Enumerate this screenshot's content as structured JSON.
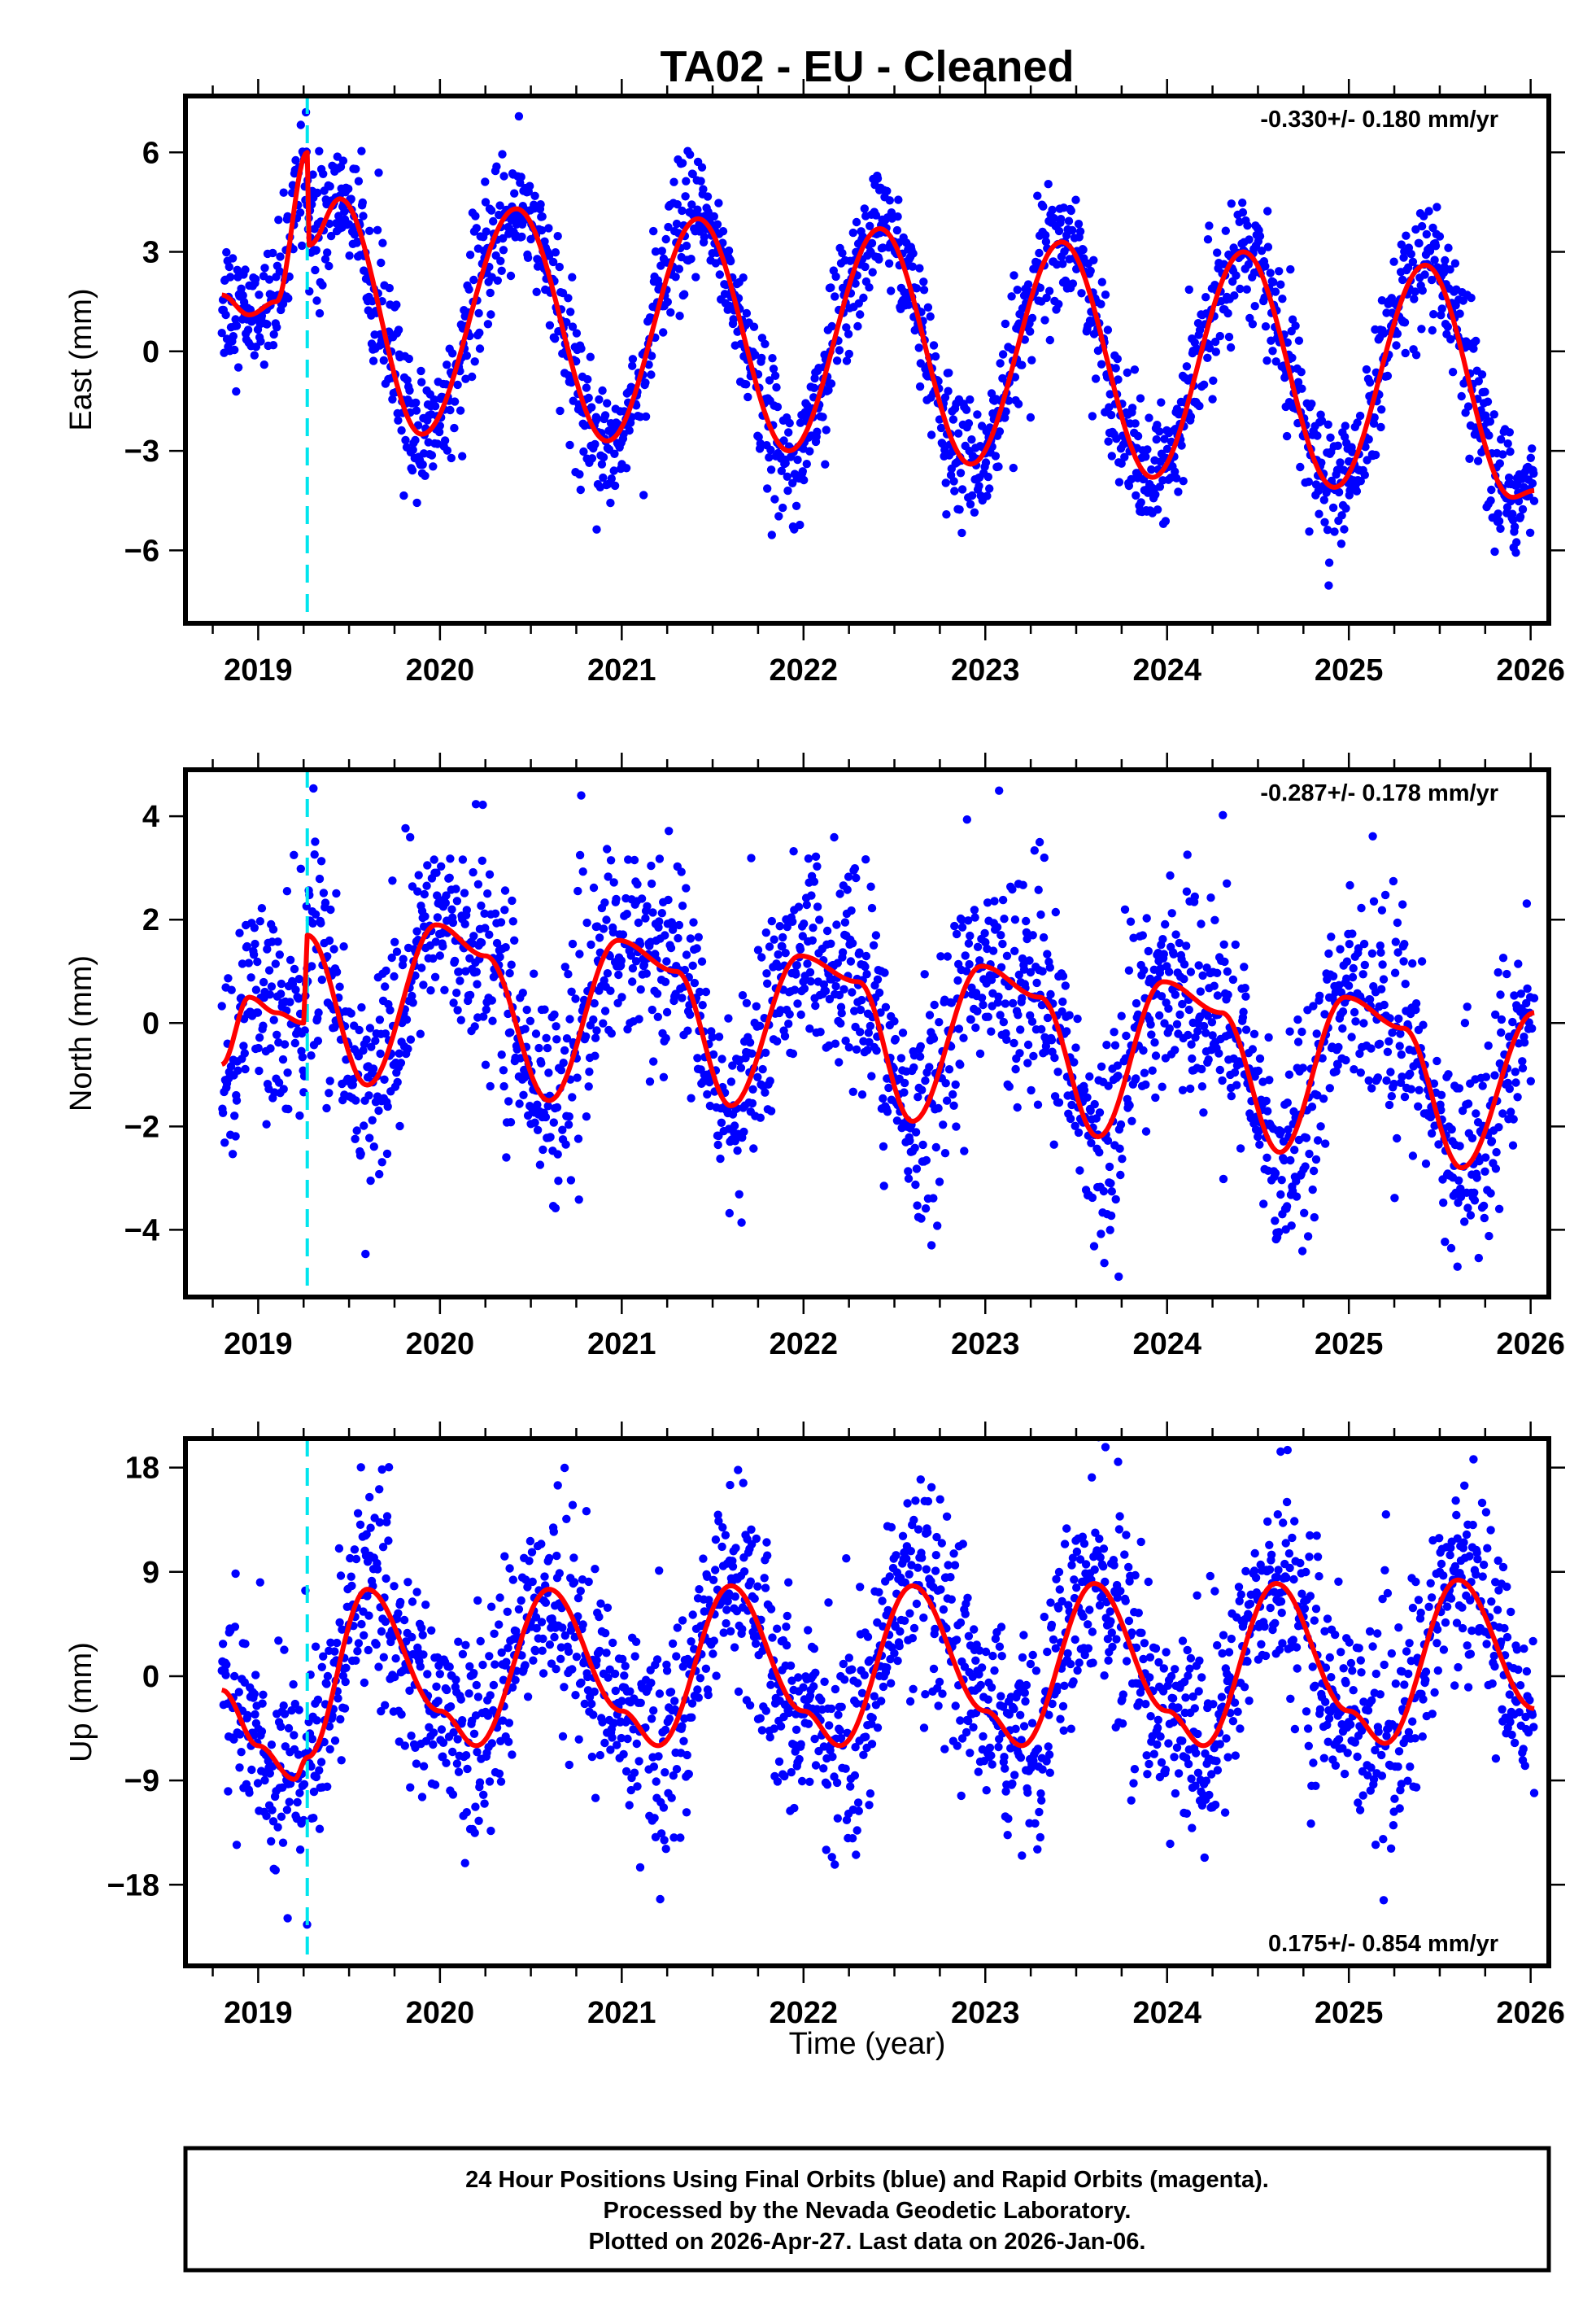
{
  "chart_data": {
    "type": "scatter",
    "title": "TA02  - EU - Cleaned",
    "xlabel": "Time (year)",
    "xlim": [
      2018.6,
      2026.1
    ],
    "x_ticks": [
      2019,
      2020,
      2021,
      2022,
      2023,
      2024,
      2025,
      2026
    ],
    "x_tick_labels": [
      "2019",
      "2020",
      "2021",
      "2022",
      "2023",
      "2024",
      "2025",
      "2026"
    ],
    "step_epoch": 2019.27,
    "step_line_color": "#00e5ee",
    "point_color": "#0000ff",
    "model_color": "#ff0000",
    "data_start": 2018.8,
    "data_end": 2026.02,
    "panels": [
      {
        "id": "east",
        "ylabel": "East (mm)",
        "ylim": [
          -8.2,
          7.7
        ],
        "y_ticks": [
          -6,
          -3,
          0,
          3,
          6
        ],
        "y_tick_labels": [
          "−6",
          "−3",
          "0",
          "3",
          "6"
        ],
        "rate_text": "-0.330+/- 0.180 mm/yr",
        "rate_position": "top-right",
        "model": {
          "offset": 0.6,
          "trend_mm_per_yr": -0.33,
          "annual_amp": 3.4,
          "annual_peak_frac": 0.42,
          "semiannual_amp": 0.3,
          "semiannual_peak_frac": 0.1,
          "pre_step_offset": 1.5,
          "scatter_sd": 0.9
        },
        "model_points": [
          [
            2018.8,
            1.7
          ],
          [
            2018.95,
            1.1
          ],
          [
            2019.1,
            1.5
          ],
          [
            2019.27,
            6.0
          ],
          [
            2019.28,
            3.2
          ],
          [
            2019.45,
            4.6
          ],
          [
            2019.9,
            -2.5
          ],
          [
            2020.42,
            4.3
          ],
          [
            2020.92,
            -2.7
          ],
          [
            2021.42,
            4.0
          ],
          [
            2021.92,
            -3.0
          ],
          [
            2022.42,
            3.7
          ],
          [
            2022.92,
            -3.4
          ],
          [
            2023.42,
            3.3
          ],
          [
            2023.92,
            -3.8
          ],
          [
            2024.42,
            3.0
          ],
          [
            2024.92,
            -4.1
          ],
          [
            2025.42,
            2.6
          ],
          [
            2025.9,
            -4.4
          ],
          [
            2026.02,
            -4.2
          ]
        ]
      },
      {
        "id": "north",
        "ylabel": "North (mm)",
        "ylim": [
          -5.3,
          4.9
        ],
        "y_ticks": [
          -4,
          -2,
          0,
          2,
          4
        ],
        "y_tick_labels": [
          "−4",
          "−2",
          "0",
          "2",
          "4"
        ],
        "rate_text": "-0.287+/- 0.178 mm/yr",
        "rate_position": "top-right",
        "model": {
          "offset": 0.1,
          "trend_mm_per_yr": -0.29,
          "annual_amp": 1.2,
          "annual_peak_frac": 0.05,
          "semiannual_amp": 0.7,
          "semiannual_peak_frac": 0.0,
          "pre_step_offset": -1.2,
          "scatter_sd": 0.95
        },
        "model_points": [
          [
            2018.8,
            -0.8
          ],
          [
            2018.95,
            0.5
          ],
          [
            2019.1,
            0.2
          ],
          [
            2019.25,
            0.0
          ],
          [
            2019.27,
            1.7
          ],
          [
            2019.6,
            -1.2
          ],
          [
            2019.98,
            1.9
          ],
          [
            2020.25,
            1.3
          ],
          [
            2020.6,
            -1.5
          ],
          [
            2020.98,
            1.6
          ],
          [
            2021.3,
            1.0
          ],
          [
            2021.6,
            -1.6
          ],
          [
            2021.98,
            1.3
          ],
          [
            2022.3,
            0.8
          ],
          [
            2022.6,
            -1.9
          ],
          [
            2022.98,
            1.1
          ],
          [
            2023.3,
            0.5
          ],
          [
            2023.62,
            -2.2
          ],
          [
            2023.98,
            0.8
          ],
          [
            2024.3,
            0.2
          ],
          [
            2024.62,
            -2.5
          ],
          [
            2024.98,
            0.5
          ],
          [
            2025.3,
            -0.1
          ],
          [
            2025.62,
            -2.8
          ],
          [
            2026.02,
            0.2
          ]
        ]
      },
      {
        "id": "up",
        "ylabel": "Up (mm)",
        "ylim": [
          -25,
          20.5
        ],
        "y_ticks": [
          -18,
          -9,
          0,
          9,
          18
        ],
        "y_tick_labels": [
          "−18",
          "−9",
          "0",
          "9",
          "18"
        ],
        "rate_text": "0.175+/- 0.854 mm/yr",
        "rate_position": "bottom-right",
        "model": {
          "offset": 0.5,
          "trend_mm_per_yr": 0.18,
          "annual_amp": 6.5,
          "annual_peak_frac": 0.6,
          "semiannual_amp": 1.8,
          "semiannual_peak_frac": 0.1,
          "pre_step_offset": -3.0,
          "scatter_sd": 4.2
        },
        "model_points": [
          [
            2018.8,
            -1.2
          ],
          [
            2019.0,
            -6.0
          ],
          [
            2019.2,
            -8.9
          ],
          [
            2019.27,
            -7.0
          ],
          [
            2019.6,
            7.5
          ],
          [
            2020.0,
            -3.0
          ],
          [
            2020.2,
            -6.0
          ],
          [
            2020.6,
            7.5
          ],
          [
            2021.0,
            -3.0
          ],
          [
            2021.2,
            -6.0
          ],
          [
            2021.6,
            7.8
          ],
          [
            2022.0,
            -3.0
          ],
          [
            2022.2,
            -6.0
          ],
          [
            2022.6,
            7.8
          ],
          [
            2023.0,
            -3.0
          ],
          [
            2023.2,
            -6.0
          ],
          [
            2023.6,
            8.0
          ],
          [
            2024.0,
            -3.0
          ],
          [
            2024.2,
            -6.0
          ],
          [
            2024.6,
            8.0
          ],
          [
            2025.0,
            -3.0
          ],
          [
            2025.2,
            -5.8
          ],
          [
            2025.6,
            8.3
          ],
          [
            2026.02,
            -2.8
          ]
        ]
      }
    ]
  },
  "footer": {
    "line1": "24 Hour Positions Using Final Orbits (blue) and Rapid Orbits (magenta).",
    "line2": "Processed by the Nevada Geodetic Laboratory.",
    "line3": "Plotted on 2026-Apr-27. Last data on 2026-Jan-06."
  }
}
